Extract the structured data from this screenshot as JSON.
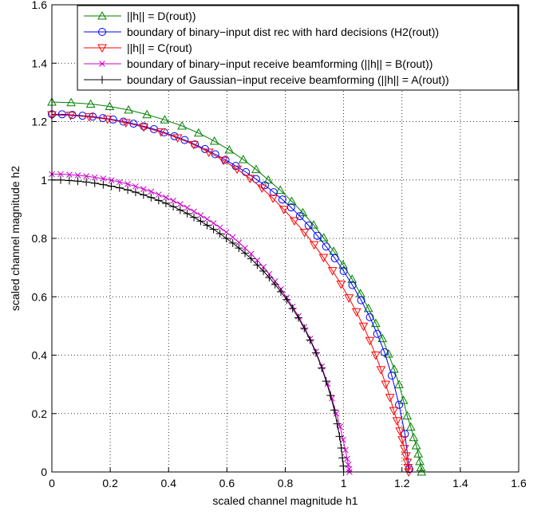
{
  "chart_data": {
    "type": "line",
    "xlabel": "scaled channel magnitude h1",
    "ylabel": "scaled channel magnitude h2",
    "xlim": [
      0,
      1.6
    ],
    "ylim": [
      0,
      1.6
    ],
    "xticks": [
      0,
      0.2,
      0.4,
      0.6,
      0.8,
      1,
      1.2,
      1.4,
      1.6
    ],
    "yticks": [
      0,
      0.2,
      0.4,
      0.6,
      0.8,
      1,
      1.2,
      1.4,
      1.6
    ],
    "xtick_labels": [
      "0",
      "0.2",
      "0.4",
      "0.6",
      "0.8",
      "1",
      "1.2",
      "1.4",
      "1.6"
    ],
    "ytick_labels": [
      "0",
      "0.2",
      "0.4",
      "0.6",
      "0.8",
      "1",
      "1.2",
      "1.4",
      "1.6"
    ],
    "grid": true,
    "legend_position": "top-right",
    "series": [
      {
        "name": "||h|| = D(rout))",
        "color": "#008000",
        "marker": "triangle-up",
        "x": [
          0,
          0.066,
          0.133,
          0.198,
          0.263,
          0.326,
          0.387,
          0.446,
          0.503,
          0.557,
          0.608,
          0.656,
          0.7,
          0.742,
          0.783,
          0.822,
          0.86,
          0.897,
          0.932,
          0.966,
          0.998,
          1.029,
          1.058,
          1.085,
          1.11,
          1.133,
          1.154,
          1.173,
          1.19,
          1.205,
          1.218,
          1.23,
          1.24,
          1.249,
          1.256,
          1.261,
          1.265,
          1.267
        ],
        "y": [
          1.267,
          1.265,
          1.26,
          1.252,
          1.24,
          1.224,
          1.206,
          1.185,
          1.161,
          1.133,
          1.103,
          1.07,
          1.036,
          1.0,
          0.965,
          0.927,
          0.888,
          0.846,
          0.802,
          0.756,
          0.709,
          0.66,
          0.611,
          0.56,
          0.509,
          0.457,
          0.404,
          0.352,
          0.299,
          0.245,
          0.192,
          0.154,
          0.118,
          0.09,
          0.062,
          0.036,
          0.015,
          0
        ]
      },
      {
        "name": "boundary of binary−input dist rec with hard decisions (H2(rout))",
        "color": "#0000ff",
        "marker": "circle",
        "x": [
          0,
          0.035,
          0.07,
          0.105,
          0.14,
          0.175,
          0.21,
          0.245,
          0.28,
          0.315,
          0.35,
          0.385,
          0.42,
          0.455,
          0.49,
          0.525,
          0.56,
          0.595,
          0.63,
          0.665,
          0.7,
          0.73,
          0.76,
          0.79,
          0.82,
          0.85,
          0.88,
          0.91,
          0.94,
          0.97,
          1.0,
          1.03,
          1.06,
          1.09,
          1.115,
          1.14,
          1.165,
          1.19,
          1.21,
          1.225
        ],
        "y": [
          1.225,
          1.225,
          1.223,
          1.22,
          1.217,
          1.212,
          1.207,
          1.2,
          1.193,
          1.184,
          1.174,
          1.163,
          1.15,
          1.137,
          1.122,
          1.106,
          1.088,
          1.069,
          1.048,
          1.027,
          1.003,
          0.982,
          0.958,
          0.933,
          0.906,
          0.876,
          0.844,
          0.809,
          0.772,
          0.732,
          0.688,
          0.64,
          0.588,
          0.53,
          0.473,
          0.41,
          0.33,
          0.23,
          0.13,
          0.01
        ]
      },
      {
        "name": "||h|| = C(rout)",
        "color": "#ff0000",
        "marker": "triangle-down",
        "x": [
          0,
          0.064,
          0.128,
          0.191,
          0.254,
          0.315,
          0.374,
          0.431,
          0.486,
          0.538,
          0.588,
          0.635,
          0.679,
          0.72,
          0.758,
          0.795,
          0.831,
          0.866,
          0.899,
          0.931,
          0.962,
          0.991,
          1.018,
          1.044,
          1.068,
          1.09,
          1.11,
          1.128,
          1.144,
          1.159,
          1.172,
          1.183,
          1.193,
          1.201,
          1.208,
          1.214,
          1.218,
          1.221,
          1.223
        ],
        "y": [
          1.223,
          1.221,
          1.216,
          1.208,
          1.196,
          1.181,
          1.164,
          1.144,
          1.121,
          1.095,
          1.067,
          1.037,
          1.005,
          0.972,
          0.937,
          0.899,
          0.86,
          0.82,
          0.778,
          0.734,
          0.689,
          0.643,
          0.596,
          0.548,
          0.499,
          0.45,
          0.4,
          0.35,
          0.3,
          0.255,
          0.21,
          0.175,
          0.14,
          0.11,
          0.08,
          0.055,
          0.033,
          0.015,
          0
        ]
      },
      {
        "name": "boundary of binary−input receive beamforming (||h|| = B(rout))",
        "color": "#cc00cc",
        "marker": "x",
        "x": [
          0,
          0.03,
          0.06,
          0.089,
          0.118,
          0.147,
          0.176,
          0.204,
          0.232,
          0.26,
          0.287,
          0.314,
          0.34,
          0.366,
          0.391,
          0.416,
          0.44,
          0.464,
          0.487,
          0.51,
          0.532,
          0.554,
          0.576,
          0.598,
          0.62,
          0.641,
          0.662,
          0.683,
          0.704,
          0.725,
          0.745,
          0.765,
          0.785,
          0.805,
          0.825,
          0.845,
          0.865,
          0.885,
          0.905,
          0.925,
          0.945,
          0.96,
          0.975,
          0.988,
          0.998,
          1.006,
          1.012,
          1.016,
          1.019,
          1.02
        ],
        "y": [
          1.02,
          1.02,
          1.018,
          1.016,
          1.013,
          1.009,
          1.005,
          0.999,
          0.993,
          0.986,
          0.978,
          0.969,
          0.96,
          0.95,
          0.94,
          0.929,
          0.917,
          0.905,
          0.892,
          0.879,
          0.866,
          0.852,
          0.837,
          0.821,
          0.804,
          0.786,
          0.767,
          0.747,
          0.725,
          0.702,
          0.678,
          0.653,
          0.626,
          0.597,
          0.566,
          0.533,
          0.496,
          0.456,
          0.412,
          0.361,
          0.302,
          0.252,
          0.2,
          0.155,
          0.11,
          0.075,
          0.045,
          0.025,
          0.01,
          0
        ]
      },
      {
        "name": "boundary of Gaussian−input receive beamforming (||h|| = A(rout))",
        "color": "#000000",
        "marker": "plus",
        "x": [
          0,
          0.03,
          0.06,
          0.089,
          0.118,
          0.147,
          0.176,
          0.204,
          0.232,
          0.26,
          0.287,
          0.314,
          0.34,
          0.366,
          0.391,
          0.416,
          0.44,
          0.464,
          0.487,
          0.51,
          0.532,
          0.554,
          0.576,
          0.598,
          0.62,
          0.641,
          0.662,
          0.683,
          0.704,
          0.725,
          0.745,
          0.765,
          0.785,
          0.805,
          0.825,
          0.845,
          0.865,
          0.885,
          0.905,
          0.925,
          0.94,
          0.955,
          0.968,
          0.978,
          0.986,
          0.992,
          0.996,
          0.999,
          1.0
        ],
        "y": [
          1.0,
          1.0,
          0.998,
          0.996,
          0.993,
          0.989,
          0.984,
          0.979,
          0.973,
          0.966,
          0.958,
          0.949,
          0.94,
          0.93,
          0.92,
          0.909,
          0.897,
          0.885,
          0.872,
          0.859,
          0.845,
          0.831,
          0.816,
          0.8,
          0.784,
          0.767,
          0.749,
          0.73,
          0.709,
          0.688,
          0.666,
          0.642,
          0.617,
          0.59,
          0.56,
          0.528,
          0.492,
          0.452,
          0.408,
          0.356,
          0.311,
          0.262,
          0.212,
          0.165,
          0.122,
          0.082,
          0.048,
          0.02,
          0
        ]
      }
    ]
  }
}
